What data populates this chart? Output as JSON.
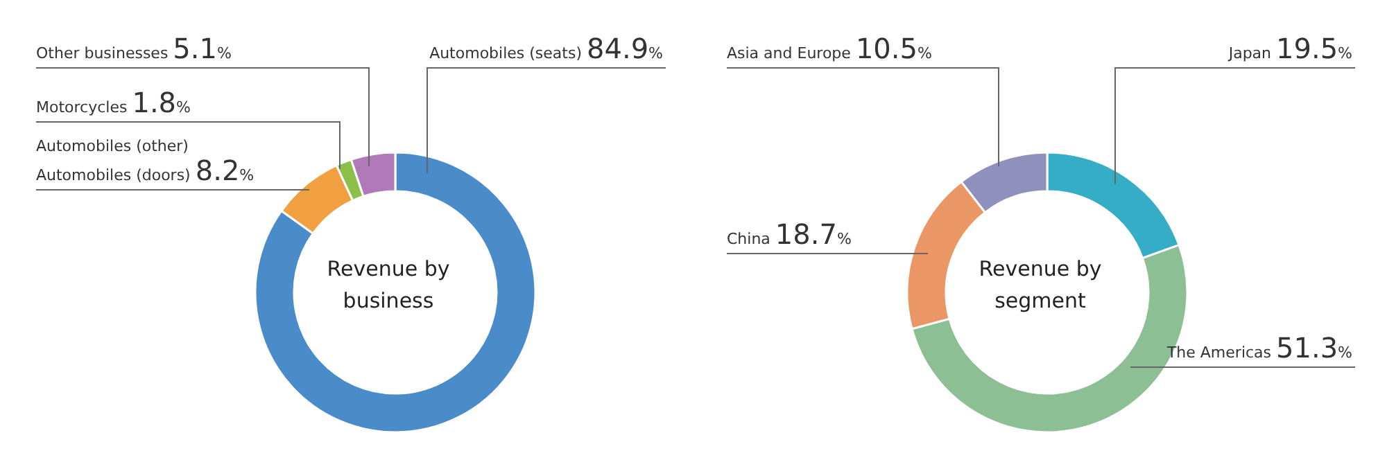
{
  "chart_data": [
    {
      "type": "donut",
      "title": "Revenue by business",
      "categories": [
        "Automobiles (seats)",
        "Automobiles (other)\nAutomobiles (doors)",
        "Motorcycles",
        "Other businesses"
      ],
      "values": [
        84.9,
        8.2,
        1.8,
        5.1
      ],
      "colors": [
        "#4a8cc9",
        "#f0a040",
        "#8cc04a",
        "#b07ab8"
      ],
      "value_labels": [
        "84.9%",
        "8.2%",
        "1.8%",
        "5.1%"
      ]
    },
    {
      "type": "donut",
      "title": "Revenue by segment",
      "categories": [
        "Japan",
        "The Americas",
        "China",
        "Asia and Europe"
      ],
      "values": [
        19.5,
        51.3,
        18.7,
        10.5
      ],
      "colors": [
        "#36adc6",
        "#8cbf94",
        "#eb9665",
        "#8f91bc"
      ],
      "value_labels": [
        "19.5%",
        "51.3%",
        "18.7%",
        "10.5%"
      ]
    }
  ]
}
